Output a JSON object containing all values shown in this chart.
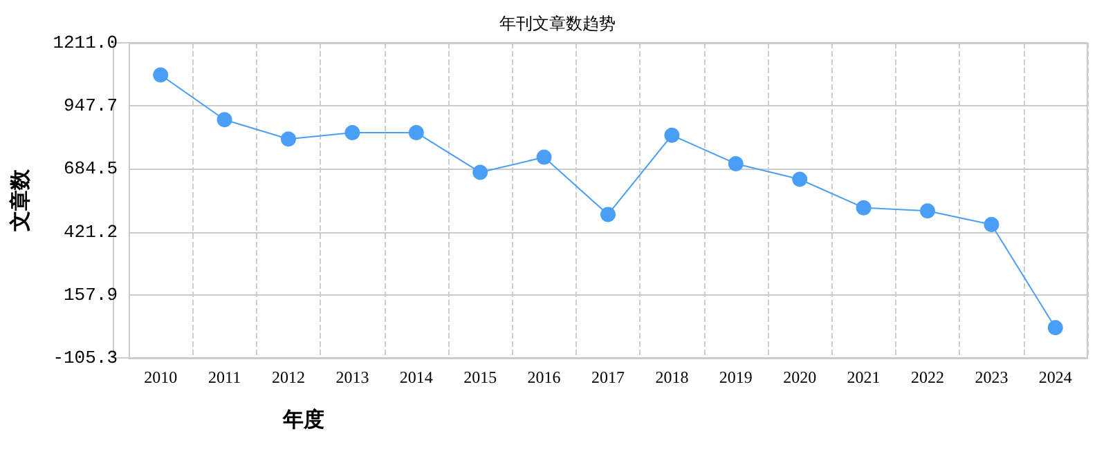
{
  "chart_data": {
    "type": "line",
    "title": "年刊文章数趋势",
    "xlabel": "年度",
    "ylabel": "文章数",
    "categories": [
      "2010",
      "2011",
      "2012",
      "2013",
      "2014",
      "2015",
      "2016",
      "2017",
      "2018",
      "2019",
      "2020",
      "2021",
      "2022",
      "2023",
      "2024"
    ],
    "series": [
      {
        "color": "#4a9ef5",
        "values": [
          1077,
          890,
          809,
          836,
          836,
          670,
          733,
          494,
          825,
          706,
          641,
          522,
          509,
          452,
          21
        ]
      }
    ],
    "ylim": [
      -105.3,
      1211.0
    ],
    "yticks": [
      {
        "value": -105.3,
        "label": "-105.3"
      },
      {
        "value": 157.9,
        "label": "157.9"
      },
      {
        "value": 421.2,
        "label": "421.2"
      },
      {
        "value": 684.5,
        "label": "684.5"
      },
      {
        "value": 947.7,
        "label": "947.7"
      },
      {
        "value": 1211.0,
        "label": "1211.0"
      }
    ],
    "grid": true,
    "marker": "circle",
    "line_style": "solid"
  }
}
